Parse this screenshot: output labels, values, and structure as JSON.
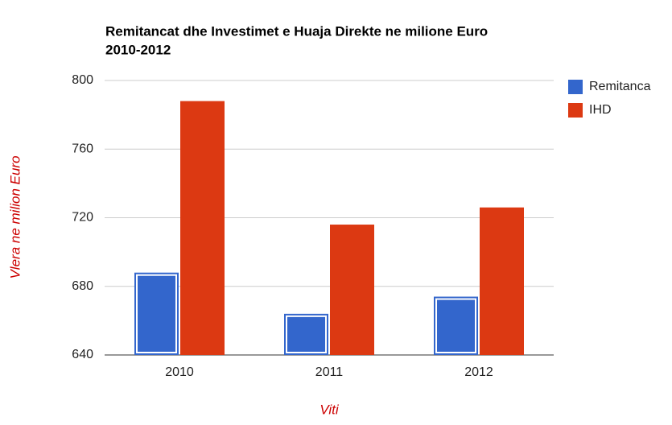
{
  "chart_data": {
    "type": "bar",
    "title": [
      "Remitancat dhe Investimet e Huaja Direkte ne milione Euro",
      "2010-2012"
    ],
    "x_label": "Viti",
    "y_label": "Vlera ne milion Euro",
    "categories": [
      "2010",
      "2011",
      "2012"
    ],
    "series": [
      {
        "name": "Remitanca",
        "color": "#3366cc",
        "values": [
          688,
          664,
          674
        ]
      },
      {
        "name": "IHD",
        "color": "#dc3912",
        "values": [
          788,
          716,
          726
        ]
      }
    ],
    "ylim": [
      640,
      800
    ],
    "yticks": [
      640,
      680,
      720,
      760,
      800
    ],
    "grid": true,
    "legend": "right"
  }
}
